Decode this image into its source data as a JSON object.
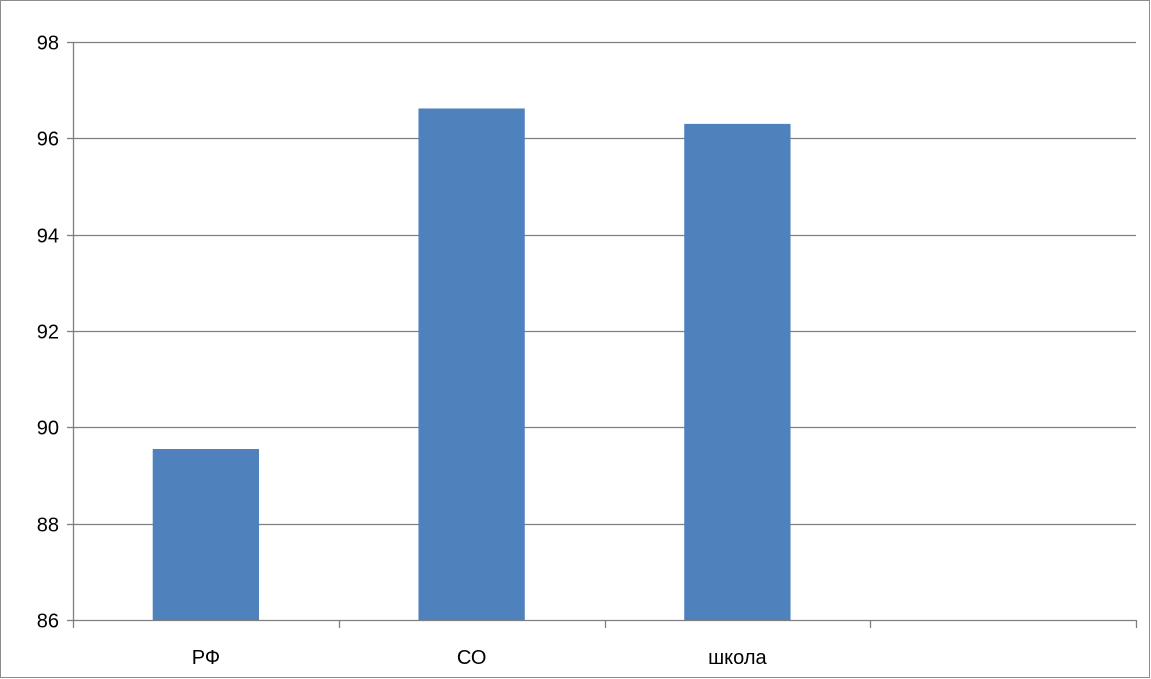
{
  "chart_data": {
    "type": "bar",
    "title": "",
    "xlabel": "",
    "ylabel": "",
    "categories": [
      "РФ",
      "СО",
      "школа",
      ""
    ],
    "series": [
      {
        "values": [
          89.55,
          96.62,
          96.3,
          null
        ]
      }
    ],
    "ylim": [
      86,
      98
    ],
    "yticks": [
      "86",
      "88",
      "90",
      "92",
      "94",
      "96",
      "98"
    ],
    "grid": true,
    "legend": "none",
    "bar_color": "#4f81bd",
    "grid_color": "#7f7f7f",
    "axis_color": "#7f7f7f"
  }
}
